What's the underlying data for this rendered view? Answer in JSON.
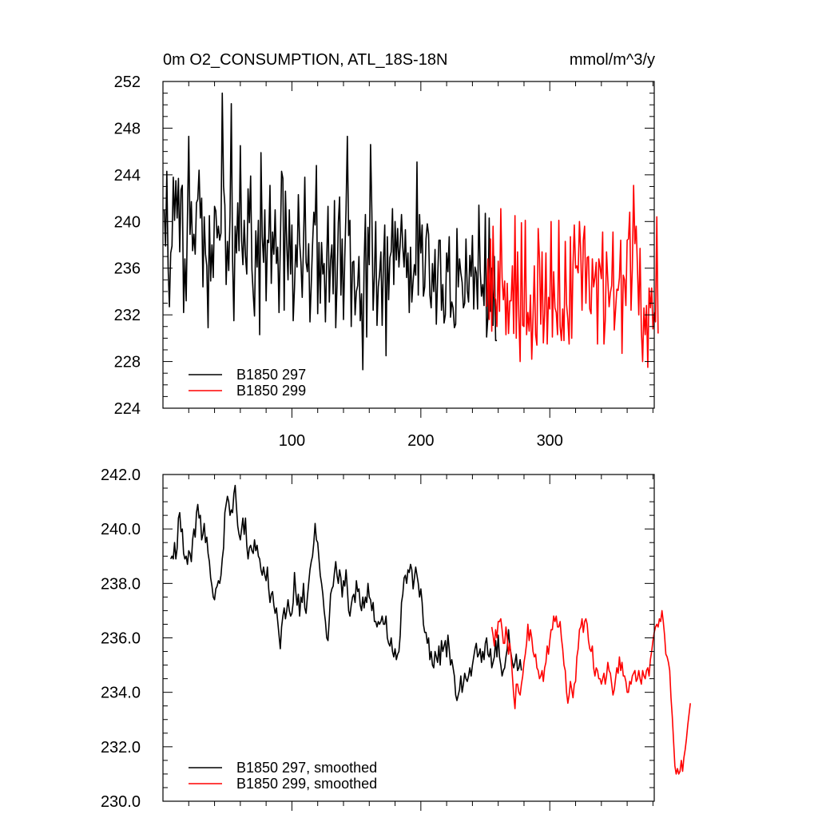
{
  "chart_data": [
    {
      "type": "line",
      "title": "0m O2_CONSUMPTION, ATL_18S-18N",
      "units": "mmol/m^3/y",
      "xlabel": "",
      "ylabel": "",
      "xlim": [
        0,
        381
      ],
      "ylim": [
        224,
        252
      ],
      "xticks": [
        100,
        200,
        300
      ],
      "yticks": [
        224,
        228,
        232,
        236,
        240,
        244,
        248,
        252
      ],
      "ytick_labels": [
        "224",
        "228",
        "232",
        "236",
        "240",
        "244",
        "248",
        "252"
      ],
      "xtick_labels": [
        "100",
        "200",
        "300"
      ],
      "legend_position": "bottom-left",
      "series": [
        {
          "name": "B1850 297",
          "color": "#000000",
          "x_start": 1,
          "values": [
            241.0,
            237.9,
            244.3,
            236.1,
            232.7,
            237.3,
            237.9,
            243.8,
            240.1,
            243.5,
            240.3,
            243.7,
            237.4,
            242.7,
            243.1,
            232.2,
            236.8,
            233.2,
            240.4,
            247.3,
            238.9,
            241.7,
            237.5,
            238.9,
            237.2,
            241.6,
            241.9,
            244.4,
            240.3,
            242.0,
            234.4,
            240.4,
            237.2,
            236.2,
            230.9,
            240.5,
            234.9,
            238.0,
            235.2,
            241.3,
            240.9,
            238.6,
            239.6,
            238.4,
            239.0,
            251.0,
            243.0,
            241.4,
            234.6,
            238.3,
            235.8,
            240.4,
            250.1,
            236.7,
            231.5,
            239.6,
            237.3,
            241.6,
            237.5,
            246.5,
            238.4,
            236.3,
            240.1,
            237.0,
            235.5,
            242.8,
            239.9,
            243.9,
            235.9,
            233.8,
            231.9,
            239.2,
            236.1,
            240.1,
            230.3,
            245.9,
            238.7,
            236.5,
            241.0,
            233.2,
            238.4,
            238.2,
            243.1,
            234.7,
            239.1,
            237.2,
            241.0,
            236.4,
            237.8,
            232.2,
            237.9,
            244.3,
            243.7,
            232.4,
            242.6,
            238.1,
            235.0,
            241.0,
            235.5,
            239.7,
            231.5,
            234.3,
            238.0,
            236.1,
            242.3,
            238.2,
            236.5,
            233.5,
            238.1,
            243.8,
            236.5,
            235.7,
            238.1,
            231.4,
            234.6,
            238.0,
            240.8,
            239.7,
            244.8,
            232.1,
            238.2,
            233.0,
            238.2,
            235.5,
            236.4,
            231.4,
            236.7,
            241.3,
            233.1,
            236.7,
            238.0,
            233.8,
            241.8,
            230.9,
            234.6,
            239.9,
            242.1,
            233.7,
            238.5,
            231.6,
            236.9,
            241.1,
            247.3,
            238.8,
            240.1,
            231.0,
            236.5,
            236.6,
            232.0,
            234.0,
            234.5,
            237.0,
            231.5,
            233.8,
            227.3,
            236.4,
            240.6,
            230.1,
            239.5,
            236.3,
            246.6,
            240.8,
            232.4,
            235.4,
            240.0,
            231.1,
            234.4,
            235.5,
            237.4,
            231.1,
            236.6,
            239.7,
            228.5,
            238.7,
            233.3,
            236.9,
            237.4,
            241.1,
            234.6,
            240.0,
            236.7,
            239.4,
            236.1,
            238.1,
            240.6,
            237.8,
            236.1,
            239.3,
            235.2,
            237.3,
            232.2,
            237.8,
            233.1,
            234.9,
            236.3,
            235.4,
            245.1,
            233.7,
            240.6,
            237.3,
            239.7,
            233.6,
            234.4,
            238.5,
            239.8,
            238.9,
            233.7,
            232.6,
            236.4,
            234.0,
            237.6,
            231.2,
            235.1,
            238.4,
            238.4,
            232.4,
            234.6,
            231.3,
            232.0,
            237.3,
            235.7,
            238.7,
            231.8,
            233.1,
            232.6,
            230.9,
            231.2,
            239.4,
            234.4,
            236.8,
            235.6,
            234.8,
            232.6,
            233.0,
            238.5,
            234.1,
            233.1,
            237.1,
            235.3,
            238.8,
            232.5,
            236.1,
            235.6,
            232.5,
            241.4,
            235.9,
            233.6,
            234.6,
            232.8,
            240.7,
            230.1,
            231.8,
            240.3,
            232.3,
            236.0,
            231.1,
            237.0,
            229.8,
            229.8
          ]
        },
        {
          "name": "B1850 299",
          "color": "#ff0000",
          "x_start": 251,
          "values": [
            232.7,
            236.8,
            231.6,
            238.5,
            230.6,
            239.6,
            233.6,
            233.3,
            231.0,
            236.6,
            232.3,
            241.1,
            235.2,
            233.3,
            234.9,
            230.3,
            234.7,
            230.4,
            233.2,
            233.2,
            236.2,
            230.4,
            240.5,
            230.0,
            237.4,
            231.9,
            228.0,
            239.9,
            231.1,
            231.0,
            240.1,
            230.3,
            232.2,
            230.6,
            233.7,
            228.2,
            231.8,
            236.2,
            230.3,
            229.4,
            239.4,
            236.8,
            231.2,
            237.4,
            229.6,
            232.1,
            237.3,
            229.5,
            233.5,
            232.5,
            240.0,
            230.1,
            235.7,
            232.6,
            232.2,
            230.3,
            240.1,
            231.0,
            229.8,
            232.5,
            229.8,
            238.3,
            232.9,
            231.6,
            229.5,
            238.7,
            230.0,
            236.3,
            239.7,
            236.0,
            236.2,
            235.6,
            240.0,
            237.4,
            232.4,
            238.4,
            239.6,
            233.0,
            236.9,
            237.0,
            232.5,
            232.1,
            236.8,
            234.4,
            235.2,
            236.5,
            229.5,
            236.8,
            236.1,
            235.1,
            239.1,
            229.5,
            231.5,
            237.4,
            235.0,
            232.7,
            233.9,
            234.5,
            239.1,
            230.7,
            232.4,
            234.2,
            234.1,
            235.2,
            238.4,
            228.7,
            235.4,
            235.0,
            232.8,
            238.4,
            238.5,
            240.8,
            232.4,
            236.0,
            243.1,
            238.1,
            239.6,
            236.0,
            232.0,
            237.7,
            230.7,
            228.0,
            232.6,
            230.3,
            232.8,
            227.5,
            234.3,
            232.6,
            234.3,
            230.8,
            232.2,
            231.4,
            240.4,
            230.4
          ]
        }
      ]
    },
    {
      "type": "line",
      "title": "",
      "xlabel": "",
      "ylabel": "",
      "xlim": [
        0,
        381
      ],
      "ylim": [
        230.0,
        242.0
      ],
      "xticks": [
        100,
        200,
        300
      ],
      "yticks": [
        230.0,
        232.0,
        234.0,
        236.0,
        238.0,
        240.0,
        242.0
      ],
      "ytick_labels": [
        "230.0",
        "232.0",
        "234.0",
        "236.0",
        "238.0",
        "240.0",
        "242.0"
      ],
      "legend_position": "bottom-left",
      "series": [
        {
          "name": "B1850 297, smoothed",
          "color": "#000000",
          "x_start": 6,
          "values": [
            238.9,
            239.0,
            238.9,
            239.5,
            238.9,
            239.3,
            240.4,
            240.6,
            239.9,
            240.0,
            239.1,
            238.9,
            239.0,
            238.7,
            239.2,
            239.1,
            238.8,
            239.6,
            240.0,
            239.7,
            240.6,
            240.9,
            240.4,
            240.5,
            239.6,
            239.8,
            240.2,
            239.5,
            239.7,
            239.1,
            238.8,
            238.2,
            237.9,
            237.5,
            237.4,
            237.8,
            237.9,
            238.1,
            238.0,
            238.3,
            238.9,
            239.3,
            240.6,
            240.9,
            241.2,
            241.0,
            240.5,
            240.7,
            240.6,
            241.3,
            241.6,
            240.8,
            240.1,
            239.8,
            239.6,
            240.0,
            240.4,
            239.8,
            240.4,
            239.4,
            238.9,
            239.3,
            239.4,
            239.2,
            239.1,
            239.6,
            239.2,
            239.4,
            239.0,
            238.9,
            238.5,
            238.3,
            238.6,
            238.3,
            238.1,
            238.6,
            237.8,
            237.3,
            237.6,
            237.7,
            237.2,
            236.9,
            237.1,
            236.6,
            236.1,
            235.6,
            236.4,
            236.8,
            237.1,
            236.7,
            237.0,
            237.4,
            237.0,
            236.8,
            236.9,
            237.3,
            238.4,
            237.7,
            237.2,
            237.6,
            236.8,
            237.5,
            237.3,
            238.0,
            237.1,
            236.9,
            237.5,
            238.0,
            238.5,
            238.8,
            239.0,
            239.5,
            240.2,
            239.6,
            239.5,
            238.9,
            238.3,
            238.0,
            237.6,
            237.0,
            236.6,
            236.0,
            235.9,
            236.7,
            237.6,
            237.8,
            237.9,
            238.4,
            238.8,
            238.3,
            238.0,
            238.5,
            238.2,
            237.5,
            238.1,
            237.9,
            238.5,
            237.8,
            237.0,
            236.8,
            237.2,
            237.5,
            237.6,
            237.3,
            238.1,
            237.7,
            237.8,
            237.2,
            237.0,
            237.5,
            237.1,
            237.5,
            237.3,
            238.0,
            237.5,
            237.4,
            237.0,
            237.3,
            236.6,
            236.6,
            236.4,
            236.6,
            236.5,
            236.6,
            236.8,
            236.5,
            236.5,
            236.8,
            236.0,
            235.8,
            235.7,
            236.0,
            235.5,
            235.3,
            235.6,
            235.2,
            235.4,
            235.5,
            236.1,
            237.3,
            237.6,
            238.2,
            238.3,
            238.0,
            238.5,
            238.4,
            238.7,
            238.5,
            237.8,
            238.2,
            238.6,
            238.3,
            238.0,
            237.5,
            237.8,
            237.3,
            236.5,
            236.2,
            236.2,
            235.8,
            236.0,
            235.2,
            235.5,
            235.0,
            234.9,
            235.5,
            235.3,
            235.1,
            235.7,
            235.0,
            235.9,
            235.5,
            235.7,
            235.9,
            235.3,
            236.1,
            235.6,
            235.0,
            235.2,
            234.9,
            234.6,
            233.9,
            233.7,
            233.9,
            234.1,
            234.6,
            234.0,
            234.3,
            234.7,
            234.5,
            234.4,
            234.6,
            234.9,
            234.6,
            235.0,
            235.3,
            235.6,
            235.8,
            235.3,
            235.4,
            235.6,
            235.1,
            235.5,
            235.2,
            235.8,
            236.0,
            235.4,
            235.3,
            235.6,
            234.9,
            235.1,
            235.3,
            235.9,
            235.3,
            236.1,
            235.3,
            235.0,
            234.6,
            234.8,
            234.9,
            235.3,
            235.6,
            236.3,
            235.7,
            235.4,
            235.1,
            234.9,
            235.1,
            235.4,
            234.8,
            234.9,
            235.2,
            234.8
          ]
        },
        {
          "name": "B1850 299, smoothed",
          "color": "#ff0000",
          "x_start": 255,
          "values": [
            236.4,
            236.1,
            235.7,
            236.3,
            236.0,
            236.6,
            236.6,
            236.7,
            236.3,
            235.8,
            235.8,
            236.4,
            236.0,
            235.4,
            235.8,
            235.3,
            234.6,
            233.9,
            233.4,
            234.3,
            234.3,
            234.0,
            233.9,
            234.3,
            234.6,
            235.1,
            235.4,
            235.8,
            236.5,
            235.9,
            236.3,
            236.0,
            235.5,
            235.3,
            235.4,
            234.9,
            234.8,
            234.5,
            234.6,
            234.8,
            234.4,
            234.9,
            235.1,
            235.7,
            235.4,
            235.9,
            236.3,
            236.3,
            236.8,
            236.6,
            236.8,
            236.4,
            236.4,
            236.6,
            236.0,
            235.6,
            235.0,
            234.8,
            234.0,
            233.6,
            233.9,
            234.4,
            234.1,
            233.8,
            234.3,
            234.4,
            235.3,
            235.6,
            236.3,
            236.4,
            236.7,
            236.2,
            236.6,
            236.7,
            236.5,
            235.9,
            235.6,
            235.5,
            235.7,
            234.9,
            234.6,
            234.9,
            234.8,
            234.5,
            234.5,
            234.3,
            234.5,
            234.7,
            234.3,
            234.6,
            235.1,
            234.8,
            234.7,
            234.3,
            233.9,
            234.1,
            234.5,
            234.9,
            234.7,
            235.3,
            234.8,
            235.1,
            234.6,
            234.6,
            234.4,
            234.0,
            234.0,
            234.4,
            234.3,
            234.6,
            234.7,
            234.8,
            234.4,
            234.5,
            234.8,
            234.5,
            234.3,
            234.8,
            234.6,
            234.5,
            234.8,
            234.9,
            234.6,
            235.2,
            235.5,
            235.9,
            236.2,
            236.4,
            236.5,
            236.4,
            236.7,
            236.6,
            237.0,
            236.6,
            236.1,
            235.4,
            235.3,
            235.1,
            234.8,
            233.8,
            233.1,
            232.2,
            231.3,
            231.0,
            231.2,
            231.0,
            231.1,
            231.5,
            231.1,
            231.6,
            231.9,
            232.3,
            232.8,
            233.2,
            233.6
          ]
        }
      ]
    }
  ]
}
